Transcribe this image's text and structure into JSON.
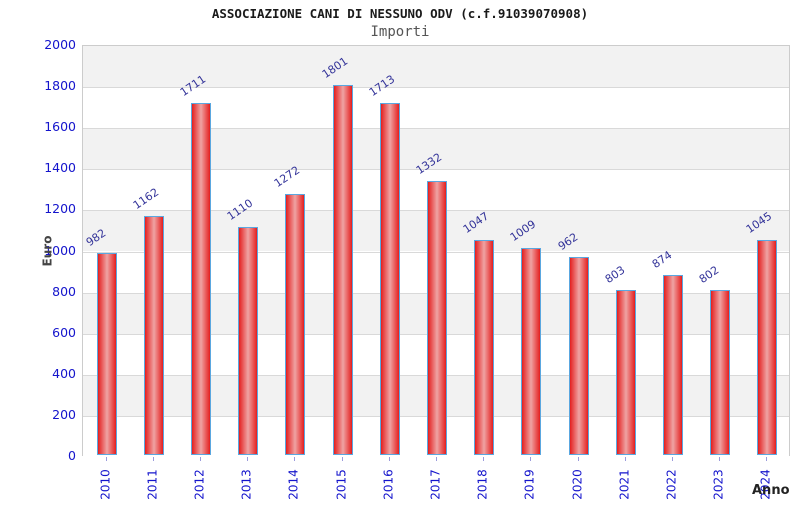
{
  "chart_data": {
    "type": "bar",
    "title": "ASSOCIAZIONE CANI DI NESSUNO ODV (c.f.91039070908)",
    "subtitle": "Importi",
    "xlabel": "Anno",
    "ylabel": "Euro",
    "categories": [
      "2010",
      "2011",
      "2012",
      "2013",
      "2014",
      "2015",
      "2016",
      "2017",
      "2018",
      "2019",
      "2020",
      "2021",
      "2022",
      "2023",
      "2024"
    ],
    "values": [
      982,
      1162,
      1711,
      1110,
      1272,
      1801,
      1713,
      1332,
      1047,
      1009,
      962,
      803,
      874,
      802,
      1045
    ],
    "ylim": [
      0,
      2000
    ],
    "ytick_interval": 200,
    "grid": true,
    "legend": "none",
    "colors": {
      "bar_edge_red": "#e41f1f",
      "bar_center_pink": "#efa3a3",
      "bar_border_blue": "#5aa7e0",
      "value_label": "#333399",
      "axis_tick_text": "#1414cc",
      "band_gray": "#f2f2f2",
      "band_white": "#ffffff",
      "gridline": "#d9d9d9",
      "plot_border": "#cccccc",
      "small_tick": "#9b9bdc"
    }
  }
}
